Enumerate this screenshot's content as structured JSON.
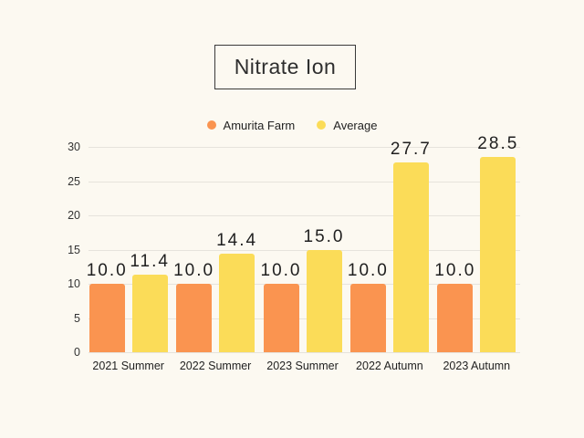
{
  "title": "Nitrate Ion",
  "legend": [
    {
      "label": "Amurita Farm",
      "color": "#FA9450"
    },
    {
      "label": "Average",
      "color": "#FBDC58"
    }
  ],
  "colors": {
    "background": "#FCF9F1",
    "gridline": "#E6E3DC",
    "text": "#222222"
  },
  "chart_data": {
    "type": "bar",
    "title": "Nitrate Ion",
    "categories": [
      "2021 Summer",
      "2022 Summer",
      "2023 Summer",
      "2022 Autumn",
      "2023 Autumn"
    ],
    "series": [
      {
        "name": "Amurita Farm",
        "color": "#FA9450",
        "values": [
          10.0,
          10.0,
          10.0,
          10.0,
          10.0
        ]
      },
      {
        "name": "Average",
        "color": "#FBDC58",
        "values": [
          11.4,
          14.4,
          15.0,
          27.7,
          28.5
        ]
      }
    ],
    "value_label_decimals": 1,
    "xlabel": "",
    "ylabel": "",
    "ylim": [
      0,
      30
    ],
    "yticks": [
      0,
      5,
      10,
      15,
      20,
      25,
      30
    ],
    "grid": true,
    "legend_position": "top"
  }
}
